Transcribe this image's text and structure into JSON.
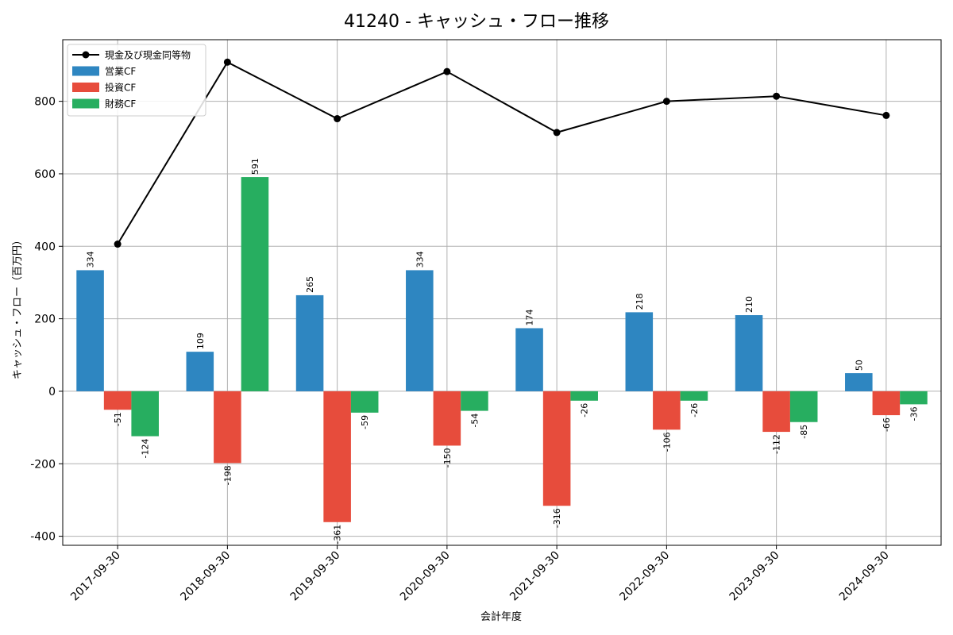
{
  "chart_data": {
    "type": "bar",
    "title": "41240 - キャッシュ・フロー推移",
    "xlabel": "会計年度",
    "ylabel": "キャッシュ・フロー（百万円）",
    "ylim": [
      -425,
      970
    ],
    "yticks": [
      -400,
      -200,
      0,
      200,
      400,
      600,
      800
    ],
    "grid": true,
    "legend_position": "top-left",
    "categories": [
      "2017-09-30",
      "2018-09-30",
      "2019-09-30",
      "2020-09-30",
      "2021-09-30",
      "2022-09-30",
      "2023-09-30",
      "2024-09-30"
    ],
    "series": [
      {
        "name": "営業CF",
        "type": "bar",
        "color": "#2e86c1",
        "values": [
          334,
          109,
          265,
          334,
          174,
          218,
          210,
          50
        ]
      },
      {
        "name": "投資CF",
        "type": "bar",
        "color": "#e74c3c",
        "values": [
          -51,
          -198,
          -361,
          -150,
          -316,
          -106,
          -112,
          -66
        ]
      },
      {
        "name": "財務CF",
        "type": "bar",
        "color": "#27ae60",
        "values": [
          -124,
          591,
          -59,
          -54,
          -26,
          -26,
          -85,
          -36
        ]
      },
      {
        "name": "現金及び現金同等物",
        "type": "line",
        "color": "#000000",
        "values": [
          406,
          908,
          752,
          882,
          714,
          800,
          814,
          761
        ]
      }
    ]
  }
}
